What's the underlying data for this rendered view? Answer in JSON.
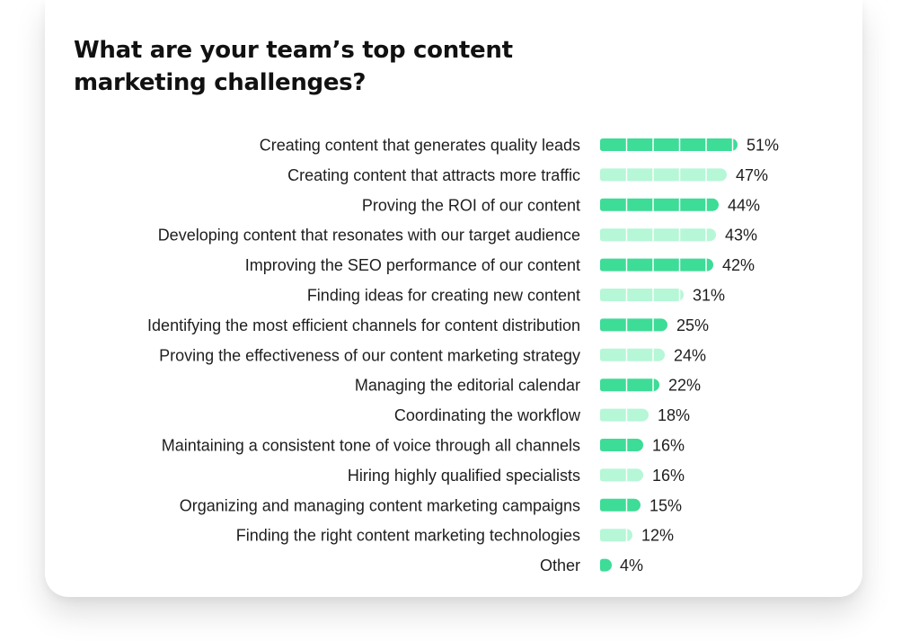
{
  "chart_data": {
    "type": "bar",
    "orientation": "horizontal",
    "title": "What are your team’s top content marketing challenges?",
    "categories": [
      "Creating content that generates quality leads",
      "Creating content that attracts more traffic",
      "Proving the ROI of our content",
      "Developing content that resonates with our target audience",
      "Improving the SEO performance of our content",
      "Finding ideas for creating new content",
      "Identifying the most efficient channels for content distribution",
      "Proving the effectiveness of our content marketing strategy",
      "Managing the editorial calendar",
      "Coordinating the workflow",
      "Maintaining a consistent tone of voice through all channels",
      "Hiring highly qualified specialists",
      "Organizing and managing content marketing campaigns",
      "Finding the right content marketing technologies",
      "Other"
    ],
    "values": [
      51,
      47,
      44,
      43,
      42,
      31,
      25,
      24,
      22,
      18,
      16,
      16,
      15,
      12,
      4
    ],
    "value_labels": [
      "51%",
      "47%",
      "44%",
      "43%",
      "42%",
      "31%",
      "25%",
      "24%",
      "22%",
      "18%",
      "16%",
      "16%",
      "15%",
      "12%",
      "4%"
    ],
    "unit": "%",
    "xlim": [
      0,
      100
    ],
    "grid": false,
    "legend": "none",
    "colors": {
      "bar_primary": "#3DDC97",
      "bar_secondary": "#B5F7D6",
      "segment_divider": "#ffffff"
    }
  }
}
